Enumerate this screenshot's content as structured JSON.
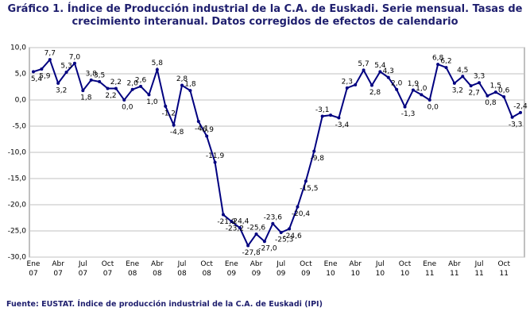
{
  "chart_data": {
    "type": "line",
    "title": "Gráfico 1. Índice de Producción industrial de la C.A. de Euskadi. Serie mensual. Tasas de crecimiento interanual. Datos corregidos de efectos de calendario",
    "source": "Fuente: EUSTAT. Índice de producción industrial de la C.A. de Euskadi (IPI)",
    "categories": [
      "Ene 07",
      null,
      null,
      "Abr 07",
      null,
      null,
      "Jul 07",
      null,
      null,
      "Oct 07",
      null,
      null,
      "Ene 08",
      null,
      null,
      "Abr 08",
      null,
      null,
      "Jul 08",
      null,
      null,
      "Oct 08",
      null,
      null,
      "Ene 09",
      null,
      null,
      "Abr 09",
      null,
      null,
      "Jul 09",
      null,
      null,
      "Oct 09",
      null,
      null,
      "Ene 10",
      null,
      null,
      "Abr 10",
      null,
      null,
      "Jul 10",
      null,
      null,
      "Oct 10",
      null,
      null,
      "Ene 11",
      null,
      null,
      "Abr 11",
      null,
      null,
      "Jul 11",
      null,
      null,
      "Oct 11",
      null,
      null
    ],
    "values": [
      5.4,
      5.9,
      7.7,
      3.2,
      5.3,
      7.0,
      1.8,
      3.8,
      3.5,
      2.2,
      2.2,
      0.0,
      2.0,
      2.6,
      1.0,
      5.8,
      -1.2,
      -4.8,
      2.8,
      1.8,
      -4.1,
      -6.9,
      -11.9,
      -21.9,
      -23.2,
      -24.4,
      -27.8,
      -25.6,
      -27.0,
      -23.6,
      -25.3,
      -24.6,
      -20.4,
      -15.5,
      -9.8,
      -3.1,
      -2.9,
      -3.4,
      2.3,
      2.9,
      5.7,
      2.8,
      5.4,
      4.3,
      2.0,
      -1.3,
      1.9,
      1.0,
      0.0,
      6.8,
      6.2,
      3.2,
      4.5,
      2.7,
      3.3,
      0.8,
      1.5,
      0.6,
      -3.3,
      -2.4
    ],
    "value_labels": [
      "5,4",
      "5,9",
      "7,7",
      "3,2",
      "5,3",
      "7,0",
      "1,8",
      "3,8",
      "3,5",
      "2,2",
      "2,2",
      "0,0",
      "2,0",
      "2,6",
      "1,0",
      "5,8",
      "-1,2",
      "-4,8",
      "2,8",
      "1,8",
      "-4,1",
      "-6,9",
      "-11,9",
      "-21,9",
      "-23,2",
      "-24,4",
      "-27,8",
      "-25,6",
      "-27,0",
      "-23,6",
      "-25,3",
      "-24,6",
      "-20,4",
      "-15,5",
      "-9,8",
      "-3,1",
      null,
      "-3,4",
      "2,3",
      null,
      "5,7",
      "2,8",
      "5,4",
      "4,3",
      "2,0",
      "-1,3",
      "1,9",
      "1,0",
      "0,0",
      "6,8",
      "6,2",
      "3,2",
      "4,5",
      "2,7",
      "3,3",
      "0,8",
      "1,5",
      "0,6",
      "-3,3",
      "-2,4"
    ],
    "color": "#000080",
    "ylim": [
      -30,
      10
    ],
    "yticks": [
      {
        "value": 10,
        "label": "10,0"
      },
      {
        "value": 5,
        "label": "5,0"
      },
      {
        "value": 0,
        "label": "0,0"
      },
      {
        "value": -5,
        "label": "-5,0"
      },
      {
        "value": -10,
        "label": "-10,0"
      },
      {
        "value": -15,
        "label": "-15,0"
      },
      {
        "value": -20,
        "label": "-20,0"
      },
      {
        "value": -25,
        "label": "-25,0"
      },
      {
        "value": -30,
        "label": "-30,0"
      }
    ],
    "grid": true
  }
}
